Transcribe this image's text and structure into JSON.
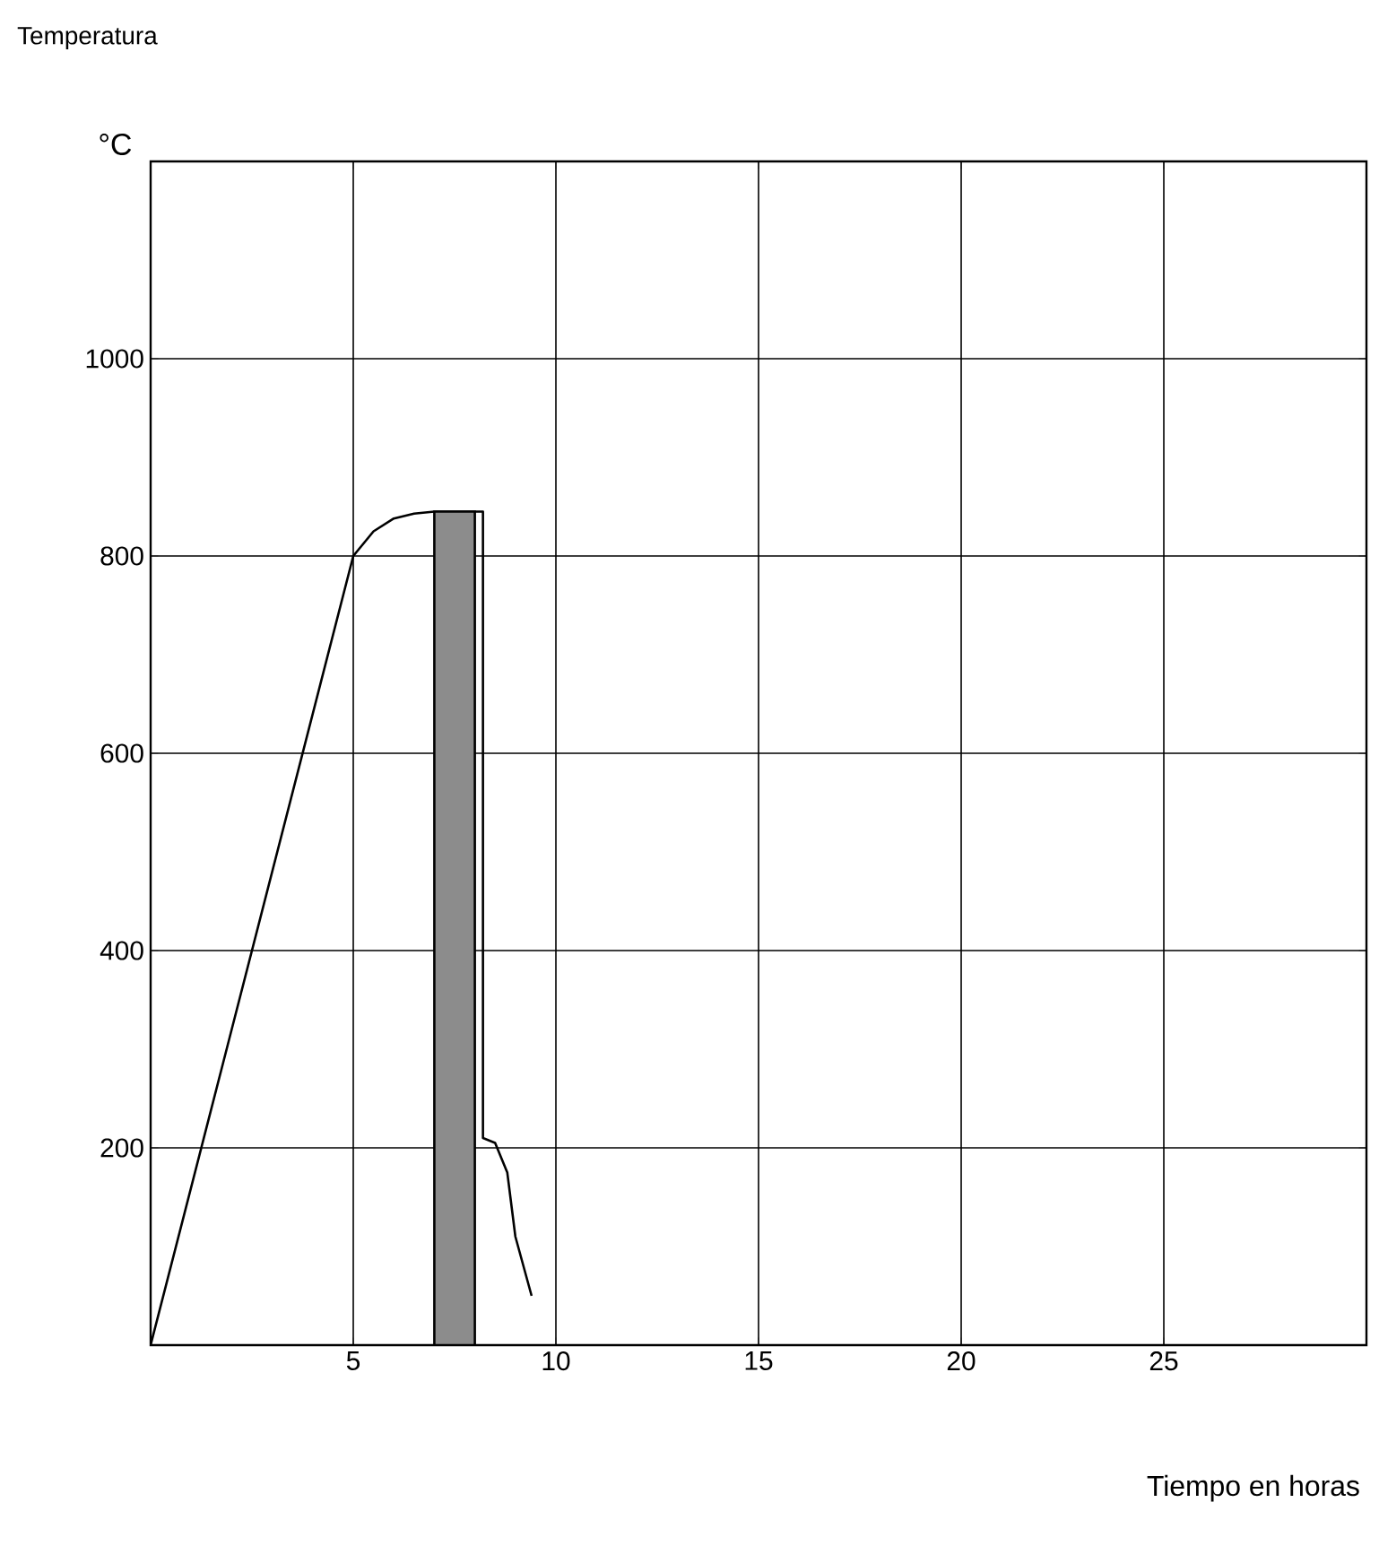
{
  "chart_data": {
    "type": "line",
    "title": "Temperatura",
    "ylabel": "°C",
    "xlabel": "Tiempo en horas",
    "xlim": [
      0,
      30
    ],
    "ylim": [
      0,
      1200
    ],
    "xticks": [
      5,
      10,
      15,
      20,
      25
    ],
    "yticks": [
      200,
      400,
      600,
      800,
      1000
    ],
    "grid": true,
    "series": [
      {
        "color": "#000000",
        "x": [
          0,
          5,
          5.5,
          6,
          6.5,
          7,
          8.2,
          8.2,
          8.5,
          8.8,
          9,
          9.4
        ],
        "values": [
          0,
          800,
          825,
          838,
          843,
          845,
          845,
          210,
          205,
          175,
          110,
          50
        ]
      },
      {
        "type": "bar",
        "color": "#8c8c8c",
        "x": [
          7.5
        ],
        "values": [
          845
        ]
      }
    ]
  }
}
